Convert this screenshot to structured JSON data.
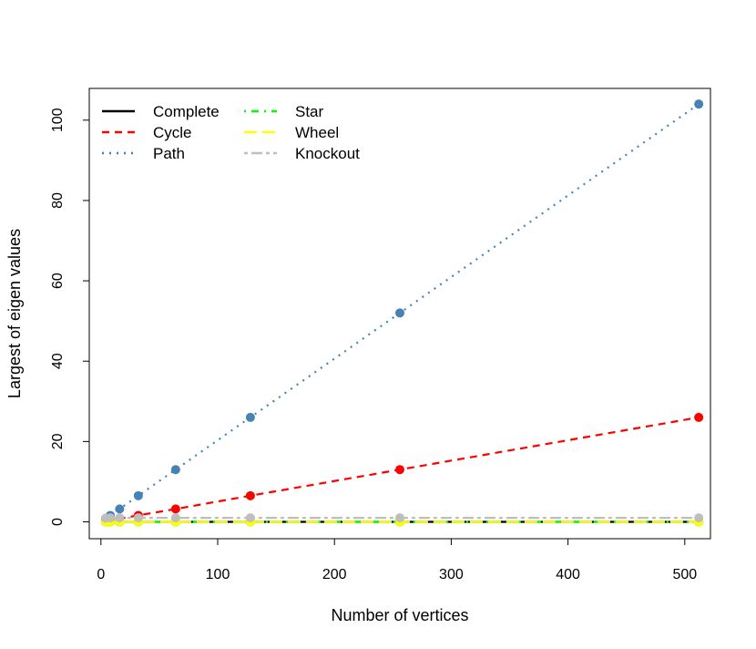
{
  "chart_data": {
    "type": "line",
    "title": "",
    "xlabel": "Number of vertices",
    "ylabel": "Largest of eigen values",
    "xlim": [
      -10,
      522
    ],
    "ylim": [
      -4.2,
      107.9
    ],
    "xticks": [
      0,
      100,
      200,
      300,
      400,
      500
    ],
    "yticks": [
      0,
      20,
      40,
      60,
      80,
      100
    ],
    "x": [
      4,
      8,
      16,
      32,
      64,
      128,
      256,
      512
    ],
    "legend_position": "top-left",
    "grid": false,
    "series": [
      {
        "name": "Complete",
        "color": "#000000",
        "dash": "solid",
        "values": [
          0,
          0,
          0,
          0,
          0,
          0,
          0,
          0
        ]
      },
      {
        "name": "Cycle",
        "color": "#ff0000",
        "dash": "dashed",
        "values": [
          0.2,
          0.4,
          0.8,
          1.6,
          3.2,
          6.5,
          13,
          26
        ]
      },
      {
        "name": "Path",
        "color": "#4682b4",
        "dash": "dotted",
        "values": [
          0.8,
          1.6,
          3.2,
          6.5,
          13,
          26,
          52,
          104
        ]
      },
      {
        "name": "Star",
        "color": "#00ff00",
        "dash": "dotdash",
        "values": [
          0,
          0,
          0,
          0,
          0,
          0,
          0,
          0
        ]
      },
      {
        "name": "Wheel",
        "color": "#ffff00",
        "dash": "longdash",
        "values": [
          0,
          0,
          0,
          0,
          0,
          0,
          0,
          0
        ]
      },
      {
        "name": "Knockout",
        "color": "#bebebe",
        "dash": "twodash",
        "values": [
          0.9,
          1,
          1,
          1,
          1,
          1,
          1,
          1
        ]
      }
    ]
  }
}
